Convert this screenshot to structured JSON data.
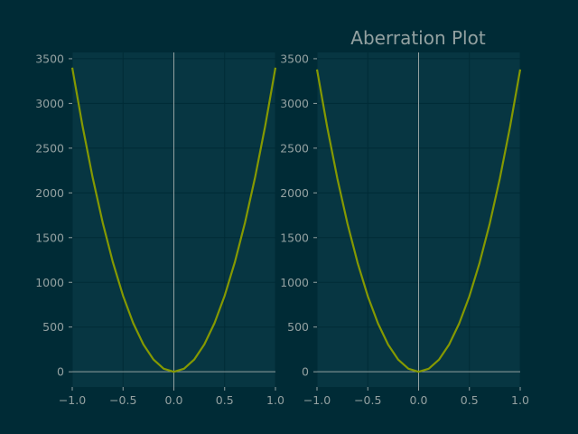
{
  "figure": {
    "title": "Aberration Plot",
    "background": "#002b36",
    "panel_background": "#073642",
    "grid_color": "#002b36",
    "text_color": "#93a1a1",
    "zero_line_color": "#93a1a1",
    "line_color": "#859900"
  },
  "chart_data": [
    {
      "type": "line",
      "title": "",
      "xlabel": "",
      "ylabel": "",
      "xlim": [
        -1.0,
        1.0
      ],
      "ylim": [
        -170,
        3570
      ],
      "grid": true,
      "xticks": [
        -1.0,
        -0.5,
        0.0,
        0.5,
        1.0
      ],
      "xtick_labels": [
        "−1.0",
        "−0.5",
        "0.0",
        "0.5",
        "1.0"
      ],
      "yticks": [
        0,
        500,
        1000,
        1500,
        2000,
        2500,
        3000,
        3500
      ],
      "ytick_labels": [
        "0",
        "500",
        "1000",
        "1500",
        "2000",
        "2500",
        "3000",
        "3500"
      ],
      "series": [
        {
          "x": [
            -1.0,
            -0.9,
            -0.8,
            -0.7,
            -0.6,
            -0.5,
            -0.4,
            -0.3,
            -0.2,
            -0.1,
            0.0,
            0.1,
            0.2,
            0.3,
            0.4,
            0.5,
            0.6,
            0.7,
            0.8,
            0.9,
            1.0
          ],
          "y": [
            3400,
            2754,
            2176,
            1666,
            1224,
            850,
            544,
            306,
            136,
            34,
            0,
            34,
            136,
            306,
            544,
            850,
            1224,
            1666,
            2176,
            2754,
            3400
          ]
        }
      ]
    },
    {
      "type": "line",
      "title": "Aberration Plot",
      "xlabel": "",
      "ylabel": "",
      "xlim": [
        -1.0,
        1.0
      ],
      "ylim": [
        -170,
        3570
      ],
      "grid": true,
      "xticks": [
        -1.0,
        -0.5,
        0.0,
        0.5,
        1.0
      ],
      "xtick_labels": [
        "−1.0",
        "−0.5",
        "0.0",
        "0.5",
        "1.0"
      ],
      "yticks": [
        0,
        500,
        1000,
        1500,
        2000,
        2500,
        3000,
        3500
      ],
      "ytick_labels": [
        "0",
        "500",
        "1000",
        "1500",
        "2000",
        "2500",
        "3000",
        "3500"
      ],
      "series": [
        {
          "x": [
            -1.0,
            -0.9,
            -0.8,
            -0.7,
            -0.6,
            -0.5,
            -0.4,
            -0.3,
            -0.2,
            -0.1,
            0.0,
            0.1,
            0.2,
            0.3,
            0.4,
            0.5,
            0.6,
            0.7,
            0.8,
            0.9,
            1.0
          ],
          "y": [
            3380,
            2738,
            2163,
            1656,
            1217,
            845,
            541,
            304,
            135,
            34,
            0,
            34,
            135,
            304,
            541,
            845,
            1217,
            1656,
            2163,
            2738,
            3380
          ]
        }
      ]
    }
  ]
}
